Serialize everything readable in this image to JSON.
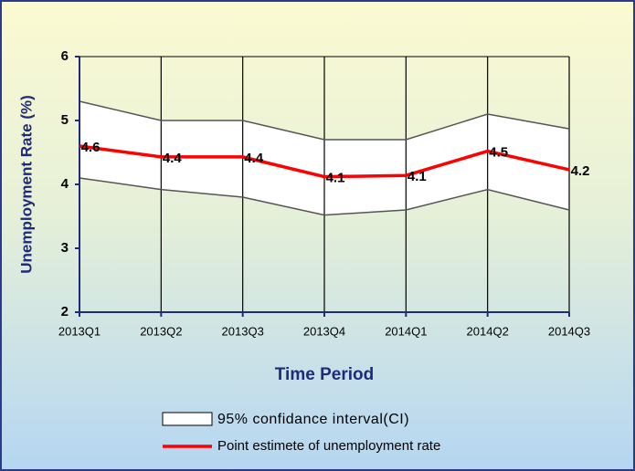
{
  "chart_data": {
    "type": "line",
    "y_label": "Unemployment Rate (%)",
    "x_label": "Time Period",
    "categories": [
      "2013Q1",
      "2013Q2",
      "2013Q3",
      "2013Q4",
      "2014Q1",
      "2014Q2",
      "2014Q3"
    ],
    "series": [
      {
        "name": "95% confidance interval(CI)",
        "color": "#ffffff",
        "edge_color": "#555555",
        "upper": [
          5.3,
          5.0,
          5.0,
          4.7,
          4.7,
          5.1,
          4.87
        ],
        "lower": [
          4.1,
          3.92,
          3.8,
          3.52,
          3.6,
          3.92,
          3.6
        ]
      },
      {
        "name": "Point estimete of unemployment rate",
        "color": "#ff0000",
        "values": [
          4.6,
          4.43,
          4.43,
          4.12,
          4.14,
          4.52,
          4.23
        ],
        "value_labels": [
          "4.6",
          "4.4",
          "4.4",
          "4.1",
          "4.1",
          "4.5",
          "4.2"
        ]
      }
    ],
    "ylim": [
      2,
      6
    ],
    "yticks": [
      2,
      3,
      4,
      5,
      6
    ],
    "grid": "vertical"
  }
}
